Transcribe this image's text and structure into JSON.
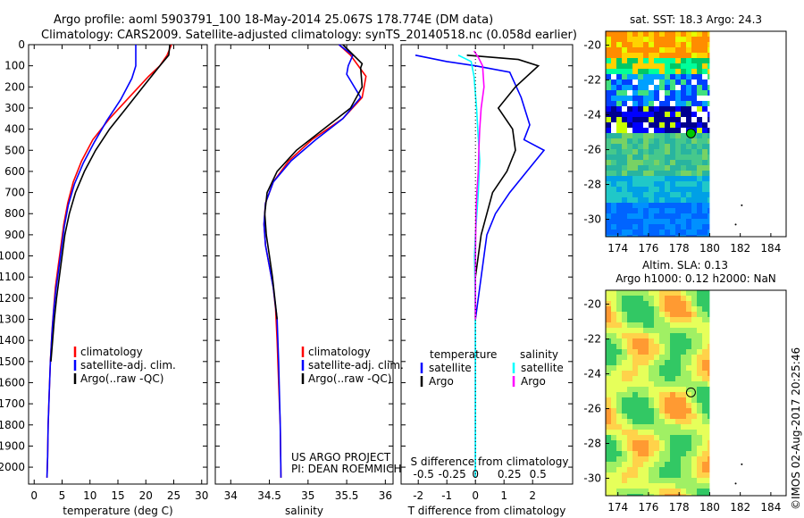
{
  "header": {
    "line1": "Argo profile: aoml 5903791_100 18-May-2014 25.067S 178.774E (DM data)",
    "line2": "Climatology: CARS2009. Satellite-adjusted climatology: synTS_20140518.nc (0.058d earlier)"
  },
  "colors": {
    "climatology": "#ff0000",
    "satellite": "#0000ff",
    "argo": "#000000",
    "sat_salinity": "#00ffff",
    "argo_salinity": "#ff00ff"
  },
  "chart_data": [
    {
      "id": "temperature",
      "type": "line",
      "xlabel": "temperature (deg C)",
      "xlim": [
        -1,
        31
      ],
      "xticks": [
        0,
        5,
        10,
        15,
        20,
        25,
        30
      ],
      "ylim": [
        0,
        2080
      ],
      "yticks": [
        0,
        100,
        200,
        300,
        400,
        500,
        600,
        700,
        800,
        900,
        1000,
        1100,
        1200,
        1300,
        1400,
        1500,
        1600,
        1700,
        1800,
        1900,
        2000
      ],
      "legend": [
        "climatology",
        "satellite-adj. clim.",
        "Argo(..raw -QC)"
      ],
      "series": [
        {
          "name": "climatology",
          "color": "#ff0000",
          "x": [
            24.6,
            23.8,
            22.5,
            20.5,
            17,
            13.5,
            10.5,
            8.5,
            7,
            6,
            5.3,
            4.8,
            4.3,
            3.8,
            3.5,
            3.2,
            2.9,
            2.7,
            2.5,
            2.4,
            2.3
          ],
          "y": [
            0,
            50,
            100,
            150,
            250,
            350,
            450,
            550,
            650,
            750,
            850,
            950,
            1050,
            1150,
            1250,
            1350,
            1500,
            1650,
            1800,
            1950,
            2050
          ]
        },
        {
          "name": "satellite-adj. clim.",
          "color": "#0000ff",
          "x": [
            18.2,
            18.2,
            18.2,
            17.5,
            15.5,
            13,
            10.8,
            8.8,
            7.2,
            6.1,
            5.4,
            4.9,
            4.4,
            3.9,
            3.5,
            3.2,
            2.9,
            2.7,
            2.5,
            2.4,
            2.3
          ],
          "y": [
            0,
            50,
            100,
            160,
            260,
            360,
            460,
            560,
            660,
            760,
            860,
            960,
            1060,
            1160,
            1260,
            1360,
            1500,
            1650,
            1800,
            1950,
            2050
          ]
        },
        {
          "name": "Argo(..raw -QC)",
          "color": "#000000",
          "x": [
            24.3,
            24.1,
            22.5,
            19.5,
            16.5,
            13.5,
            11,
            9,
            7.4,
            6.3,
            5.5,
            5,
            4.5,
            4,
            3.6,
            3.3,
            3
          ],
          "y": [
            0,
            50,
            100,
            200,
            300,
            400,
            500,
            600,
            700,
            800,
            900,
            1000,
            1100,
            1200,
            1300,
            1400,
            1500
          ]
        }
      ]
    },
    {
      "id": "salinity",
      "type": "line",
      "xlabel": "salinity",
      "xlim": [
        33.8,
        36.1
      ],
      "xticks": [
        34,
        34.5,
        35,
        35.5,
        36
      ],
      "ylim": [
        0,
        2080
      ],
      "legend": [
        "climatology",
        "satellite-adj. clim.",
        "Argo(..raw -QC)"
      ],
      "annotation": [
        "US ARGO PROJECT",
        "PI: DEAN ROEMMICH"
      ],
      "series": [
        {
          "name": "climatology",
          "color": "#ff0000",
          "x": [
            35.4,
            35.55,
            35.75,
            35.7,
            35.45,
            35.05,
            34.75,
            34.55,
            34.45,
            34.43,
            34.45,
            34.5,
            34.55,
            34.58,
            34.6,
            34.62,
            34.64,
            34.65
          ],
          "y": [
            0,
            50,
            150,
            250,
            350,
            450,
            550,
            650,
            750,
            850,
            950,
            1050,
            1150,
            1250,
            1400,
            1600,
            1800,
            2050
          ]
        },
        {
          "name": "satellite-adj. clim.",
          "color": "#0000ff",
          "x": [
            35.4,
            35.58,
            35.52,
            35.5,
            35.68,
            35.45,
            35.1,
            34.78,
            34.55,
            34.45,
            34.43,
            34.45,
            34.5,
            34.55,
            34.6,
            34.62,
            34.64,
            34.65
          ],
          "y": [
            0,
            50,
            100,
            140,
            250,
            350,
            450,
            550,
            650,
            750,
            850,
            950,
            1050,
            1150,
            1300,
            1500,
            1800,
            2050
          ]
        },
        {
          "name": "Argo(..raw -QC)",
          "color": "#000000",
          "x": [
            35.45,
            35.7,
            35.68,
            35.7,
            35.55,
            35.2,
            34.85,
            34.6,
            34.47,
            34.44,
            34.46,
            34.5,
            34.54,
            34.57,
            34.6
          ],
          "y": [
            0,
            90,
            110,
            200,
            300,
            400,
            500,
            600,
            700,
            800,
            900,
            1000,
            1100,
            1200,
            1300
          ]
        }
      ]
    },
    {
      "id": "difference",
      "type": "line",
      "xlabel": "T difference from climatology",
      "xlabel_top": "S difference from climatology",
      "xlim": [
        -2.6,
        3.4
      ],
      "xticks": [
        -2,
        -1,
        0,
        1,
        2
      ],
      "sticks": [
        "-0.5",
        "-0.25",
        "0",
        "0.25",
        "0.5"
      ],
      "ylim": [
        0,
        2080
      ],
      "legend": {
        "temperature_title": "temperature",
        "salinity_title": "salinity",
        "entries": [
          "satellite",
          "Argo",
          "satellite",
          "Argo"
        ]
      },
      "series": [
        {
          "name": "temperature satellite",
          "color": "#0000ff",
          "x": [
            -2.1,
            -1,
            0,
            1.2,
            1.6,
            1.9,
            1.7,
            2.4,
            1.8,
            1.2,
            0.7,
            0.4,
            0.3,
            0.2,
            0.1,
            0,
            0,
            0
          ],
          "y": [
            50,
            80,
            100,
            130,
            250,
            380,
            450,
            500,
            600,
            700,
            800,
            900,
            1000,
            1100,
            1200,
            1300,
            1600,
            2050
          ]
        },
        {
          "name": "temperature Argo",
          "color": "#000000",
          "x": [
            -0.3,
            1.5,
            2.2,
            1.4,
            0.8,
            1.3,
            1.4,
            1.1,
            0.6,
            0.4,
            0.2,
            0.1,
            0,
            0,
            0
          ],
          "y": [
            50,
            70,
            100,
            200,
            300,
            400,
            500,
            600,
            700,
            800,
            900,
            1000,
            1100,
            1200,
            1300
          ]
        },
        {
          "name": "salinity satellite",
          "color": "#00ffff",
          "x": [
            -0.6,
            -0.15,
            -0.05,
            0.04,
            0.08,
            0.15,
            0.1,
            0,
            -0.03,
            -0.02,
            0,
            0,
            0,
            0
          ],
          "y": [
            50,
            80,
            150,
            300,
            400,
            550,
            700,
            900,
            1000,
            1100,
            1300,
            1500,
            1800,
            2050
          ]
        },
        {
          "name": "salinity Argo",
          "color": "#ff00ff",
          "x": [
            -0.05,
            0.1,
            0.25,
            0.3,
            0.2,
            0.15,
            0.12,
            0.1,
            0.05,
            0.02,
            0,
            0
          ],
          "y": [
            30,
            60,
            100,
            200,
            300,
            400,
            500,
            600,
            700,
            800,
            1000,
            1300
          ]
        }
      ]
    },
    {
      "id": "sst_map",
      "type": "heatmap",
      "title": "sat. SST: 18.3 Argo: 24.3",
      "xticks": [
        174,
        176,
        178,
        180,
        182,
        184
      ],
      "yticks": [
        -20,
        -22,
        -24,
        -26,
        -28,
        -30
      ],
      "argo_position": [
        178.774,
        -25.067
      ]
    },
    {
      "id": "sla_map",
      "type": "heatmap",
      "title_line1": "Altim. SLA: 0.13",
      "title_line2": "Argo h1000: 0.12 h2000: NaN",
      "xticks": [
        174,
        176,
        178,
        180,
        182,
        184
      ],
      "yticks": [
        -20,
        -22,
        -24,
        -26,
        -28,
        -30
      ],
      "argo_position": [
        178.774,
        -25.067
      ]
    }
  ],
  "credit": "©IMOS 02-Aug-2017 20:25:46"
}
